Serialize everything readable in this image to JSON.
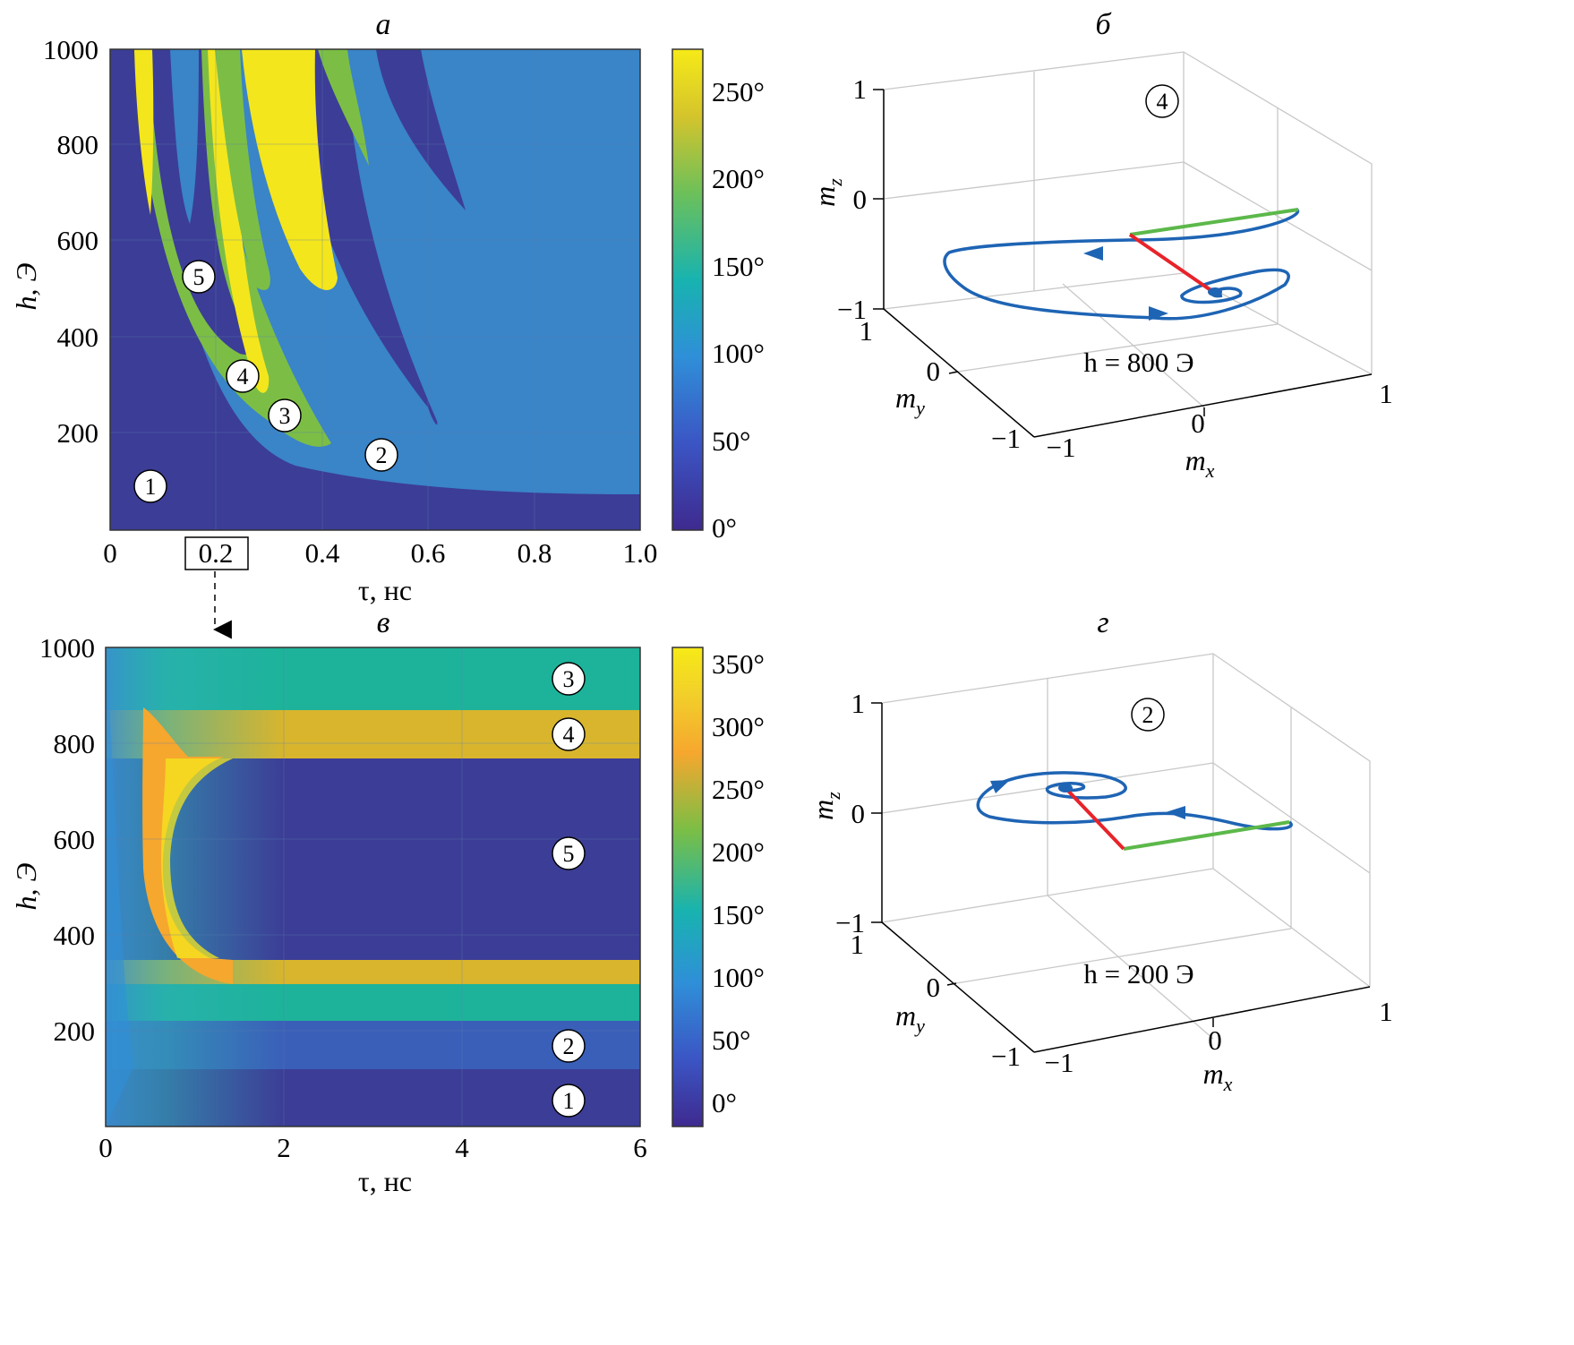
{
  "panels": {
    "a": {
      "title": "а",
      "xlabel": "τ, нс",
      "ylabel": "h, Э",
      "xticks": [
        "0",
        "0.2",
        "0.4",
        "0.6",
        "0.8",
        "1.0"
      ],
      "yticks": [
        "200",
        "400",
        "600",
        "800",
        "1000"
      ],
      "colorbar_ticks": [
        "0°",
        "50°",
        "100°",
        "150°",
        "200°",
        "250°"
      ],
      "region_markers": [
        "1",
        "2",
        "3",
        "4",
        "5"
      ]
    },
    "b": {
      "title": "б",
      "marker": "4",
      "annotation": "h = 800 Э",
      "zlabel": "m",
      "zlabel_sub": "z",
      "ylabel": "m",
      "ylabel_sub": "y",
      "xlabel": "m",
      "xlabel_sub": "x",
      "zticks": [
        "1",
        "0",
        "−1"
      ],
      "yticks": [
        "1",
        "0",
        "−1"
      ],
      "xticks": [
        "−1",
        "0",
        "1"
      ]
    },
    "c": {
      "title": "в",
      "xlabel": "τ, нс",
      "ylabel": "h, Э",
      "xticks": [
        "0",
        "2",
        "4",
        "6"
      ],
      "yticks": [
        "200",
        "400",
        "600",
        "800",
        "1000"
      ],
      "colorbar_ticks": [
        "0°",
        "50°",
        "100°",
        "150°",
        "200°",
        "250°",
        "300°",
        "350°"
      ],
      "region_markers": [
        "3",
        "4",
        "5",
        "2",
        "1"
      ]
    },
    "d": {
      "title": "г",
      "marker": "2",
      "annotation": "h = 200 Э",
      "zlabel": "m",
      "zlabel_sub": "z",
      "ylabel": "m",
      "ylabel_sub": "y",
      "xlabel": "m",
      "xlabel_sub": "x",
      "zticks": [
        "1",
        "0",
        "−1"
      ],
      "yticks": [
        "1",
        "0",
        "−1"
      ],
      "xticks": [
        "−1",
        "0",
        "1"
      ]
    }
  },
  "colors": {
    "dark_blue": "#3c3d96",
    "blue": "#3a84c8",
    "teal": "#1db39a",
    "green": "#7cbe45",
    "yellow": "#f4e61d",
    "orange": "#f6a72e",
    "gold": "#d8b52d",
    "trajectory": "#1e64b4",
    "red_vector": "#e8232a",
    "green_vector": "#5cb84a"
  },
  "chart_data": [
    {
      "type": "heatmap",
      "title": "а",
      "xlabel": "τ, нс",
      "ylabel": "h, Э",
      "xlim": [
        0,
        1.0
      ],
      "ylim": [
        0,
        1000
      ],
      "colorbar": {
        "range": [
          0,
          275
        ],
        "ticks": [
          0,
          50,
          100,
          150,
          200,
          250
        ],
        "unit": "°"
      },
      "regions": [
        {
          "label": "1",
          "tau": 0.08,
          "h": 90
        },
        {
          "label": "2",
          "tau": 0.52,
          "h": 155
        },
        {
          "label": "3",
          "tau": 0.33,
          "h": 235
        },
        {
          "label": "4",
          "tau": 0.25,
          "h": 320
        },
        {
          "label": "5",
          "tau": 0.17,
          "h": 525
        }
      ],
      "highlighted_tick": "0.2"
    },
    {
      "type": "heatmap",
      "title": "в",
      "xlabel": "τ, нс",
      "ylabel": "h, Э",
      "xlim": [
        0,
        6
      ],
      "ylim": [
        0,
        1000
      ],
      "colorbar": {
        "range": [
          -20,
          370
        ],
        "ticks": [
          0,
          50,
          100,
          150,
          200,
          250,
          300,
          350
        ],
        "unit": "°"
      },
      "bands": [
        {
          "label": "1",
          "h_from": 0,
          "h_to": 120,
          "value_deg": 10
        },
        {
          "label": "2",
          "h_from": 120,
          "h_to": 220,
          "value_deg": 70
        },
        {
          "label": "teal",
          "h_from": 220,
          "h_to": 300,
          "value_deg": 165
        },
        {
          "label": "4",
          "h_from": 300,
          "h_to": 350,
          "value_deg": 280
        },
        {
          "label": "5",
          "h_from": 350,
          "h_to": 770,
          "value_deg": 10
        },
        {
          "label": "4",
          "h_from": 770,
          "h_to": 870,
          "value_deg": 280
        },
        {
          "label": "3",
          "h_from": 870,
          "h_to": 1000,
          "value_deg": 165
        }
      ],
      "regions": [
        {
          "label": "3",
          "tau": 5.2,
          "h": 940
        },
        {
          "label": "4",
          "tau": 5.2,
          "h": 820
        },
        {
          "label": "5",
          "tau": 5.2,
          "h": 570
        },
        {
          "label": "2",
          "tau": 5.2,
          "h": 170
        },
        {
          "label": "1",
          "tau": 5.2,
          "h": 40
        }
      ]
    },
    {
      "type": "line",
      "title": "б",
      "xlabel": "m_x",
      "ylabel": "m_y",
      "zlabel": "m_z",
      "xlim": [
        -1,
        1
      ],
      "ylim": [
        -1,
        1
      ],
      "zlim": [
        -1,
        1
      ],
      "annotation": "h = 800 Э",
      "region": "4"
    },
    {
      "type": "line",
      "title": "г",
      "xlabel": "m_x",
      "ylabel": "m_y",
      "zlabel": "m_z",
      "xlim": [
        -1,
        1
      ],
      "ylim": [
        -1,
        1
      ],
      "zlim": [
        -1,
        1
      ],
      "annotation": "h = 200 Э",
      "region": "2"
    }
  ]
}
